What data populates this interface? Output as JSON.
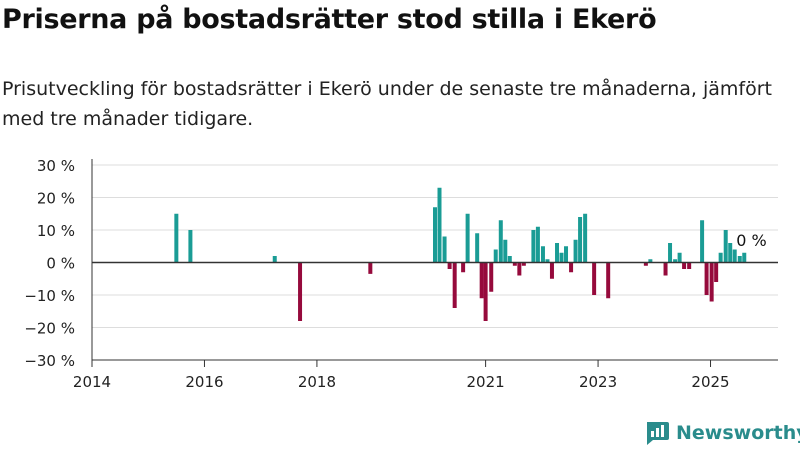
{
  "header": {
    "title": "Priserna på bostadsrätter stod stilla i Ekerö",
    "subtitle": "Prisutveckling för bostadsrätter i Ekerö under de senaste tre månaderna, jämfört med tre månader tidigare."
  },
  "brand": {
    "name": "Newsworthy",
    "color": "#2a8c8c"
  },
  "colors": {
    "positive": "#1a9c95",
    "negative": "#960a3c",
    "grid": "#dddddd",
    "axis": "#333333"
  },
  "chart_data": {
    "type": "bar",
    "title": "",
    "xlabel": "",
    "ylabel": "",
    "ylim": [
      -30,
      30
    ],
    "xlim": [
      2014.0,
      2026.2
    ],
    "y_ticks": [
      -30,
      -20,
      -10,
      0,
      10,
      20,
      30
    ],
    "y_tick_labels": [
      "−30 %",
      "−20 %",
      "−10 %",
      "0 %",
      "10 %",
      "20 %",
      "30 %"
    ],
    "x_ticks": [
      2014,
      2016,
      2018,
      2021,
      2023,
      2025
    ],
    "x_tick_labels": [
      "2014",
      "2016",
      "2018",
      "2021",
      "2023",
      "2025"
    ],
    "grid": true,
    "annotation": "0 %",
    "series": [
      {
        "values": [
          {
            "x": 2015.5,
            "y": 15
          },
          {
            "x": 2015.75,
            "y": 10
          },
          {
            "x": 2017.25,
            "y": 2
          },
          {
            "x": 2017.7,
            "y": -18
          },
          {
            "x": 2018.95,
            "y": -3.5
          },
          {
            "x": 2020.1,
            "y": 17
          },
          {
            "x": 2020.18,
            "y": 23
          },
          {
            "x": 2020.27,
            "y": 8
          },
          {
            "x": 2020.36,
            "y": -2
          },
          {
            "x": 2020.45,
            "y": -14
          },
          {
            "x": 2020.6,
            "y": -3
          },
          {
            "x": 2020.68,
            "y": 15
          },
          {
            "x": 2020.85,
            "y": 9
          },
          {
            "x": 2020.93,
            "y": -11
          },
          {
            "x": 2021.0,
            "y": -18
          },
          {
            "x": 2021.1,
            "y": -9
          },
          {
            "x": 2021.18,
            "y": 4
          },
          {
            "x": 2021.27,
            "y": 13
          },
          {
            "x": 2021.35,
            "y": 7
          },
          {
            "x": 2021.43,
            "y": 2
          },
          {
            "x": 2021.52,
            "y": -1
          },
          {
            "x": 2021.6,
            "y": -4
          },
          {
            "x": 2021.68,
            "y": -1
          },
          {
            "x": 2021.85,
            "y": 10
          },
          {
            "x": 2021.93,
            "y": 11
          },
          {
            "x": 2022.02,
            "y": 5
          },
          {
            "x": 2022.1,
            "y": 1
          },
          {
            "x": 2022.18,
            "y": -5
          },
          {
            "x": 2022.27,
            "y": 6
          },
          {
            "x": 2022.35,
            "y": 3
          },
          {
            "x": 2022.43,
            "y": 5
          },
          {
            "x": 2022.52,
            "y": -3
          },
          {
            "x": 2022.6,
            "y": 7
          },
          {
            "x": 2022.68,
            "y": 14
          },
          {
            "x": 2022.77,
            "y": 15
          },
          {
            "x": 2022.93,
            "y": -10
          },
          {
            "x": 2023.18,
            "y": -11
          },
          {
            "x": 2023.85,
            "y": -1
          },
          {
            "x": 2023.93,
            "y": 1
          },
          {
            "x": 2024.2,
            "y": -4
          },
          {
            "x": 2024.28,
            "y": 6
          },
          {
            "x": 2024.37,
            "y": 1
          },
          {
            "x": 2024.45,
            "y": 3
          },
          {
            "x": 2024.53,
            "y": -2
          },
          {
            "x": 2024.62,
            "y": -2
          },
          {
            "x": 2024.85,
            "y": 13
          },
          {
            "x": 2024.93,
            "y": -10
          },
          {
            "x": 2025.02,
            "y": -12
          },
          {
            "x": 2025.1,
            "y": -6
          },
          {
            "x": 2025.18,
            "y": 3
          },
          {
            "x": 2025.27,
            "y": 10
          },
          {
            "x": 2025.35,
            "y": 6
          },
          {
            "x": 2025.43,
            "y": 4
          },
          {
            "x": 2025.52,
            "y": 2
          },
          {
            "x": 2025.6,
            "y": 3
          }
        ]
      }
    ]
  }
}
